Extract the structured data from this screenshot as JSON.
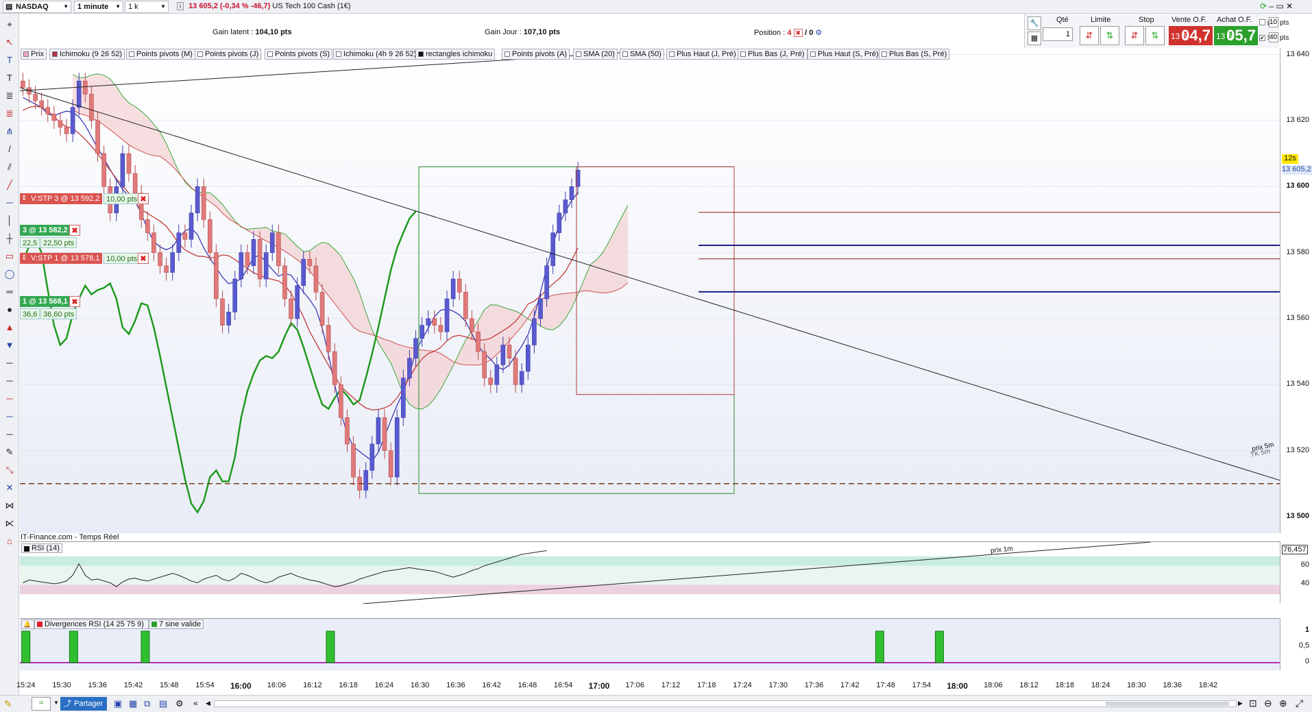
{
  "topbar": {
    "symbol": "NASDAQ",
    "timeframe": "1 minute",
    "units": "1 k unités",
    "last_price": "13 605,2 (-0,34 % -46,7)",
    "instrument": "US Tech 100 Cash (1€)"
  },
  "info": {
    "gain_latent_label": "Gain latent :",
    "gain_latent_value": "104,10 pts",
    "gain_jour_label": "Gain Jour :",
    "gain_jour_value": "107,10 pts",
    "position_label": "Position :",
    "position_value": "4",
    "position_pending": "/ 0"
  },
  "order_panel": {
    "qte_label": "Qté",
    "qte_value": "1",
    "limite_label": "Limite",
    "stop_label": "Stop",
    "vente_label": "Vente O.F.",
    "achat_label": "Achat O.F.",
    "vente_small": "13 6",
    "vente_big": "04,7",
    "achat_small": "13 6",
    "achat_big": "05,7",
    "l_label": "L",
    "l_value": "10",
    "l_unit": "pts",
    "s_label": "S",
    "s_value": "40",
    "s_unit": "pts",
    "colors": {
      "vente": "#d0312d",
      "achat": "#2ca02c"
    }
  },
  "legend": [
    "Prix",
    "Ichimoku (9 26 52)",
    "Points pivots (M)",
    "Points pivots (J)",
    "Points pivots (S)",
    "Ichimoku (4h 9 26 52)",
    "rectangles ichimoku",
    "Points pivots (A)",
    "SMA (20)",
    "SMA (50)",
    "Plus Haut (J, Pré)",
    "Plus Bas (J, Pré)",
    "Plus Haut (S, Pré)",
    "Plus Bas (S, Pré)"
  ],
  "orders": [
    {
      "label": "V:STP 3 @ 13 592,2",
      "pts": "10,00 pts"
    },
    {
      "label": "3 @ 13 582,2",
      "v1": "22,5",
      "v2": "22,50 pts"
    },
    {
      "label": "V:STP 1 @ 13 578,1",
      "pts": "10,00 pts"
    },
    {
      "label": "1 @ 13 568,1",
      "v1": "36,6",
      "v2": "36,60 pts"
    }
  ],
  "annotations": {
    "prix_5m": "prix 5m",
    "tk_5m": "TK 5m",
    "prix_1m": "prix 1m",
    "source": "IT-Finance.com - Temps Réel",
    "countdown": "12s",
    "current_price": "13 605,2"
  },
  "rsi": {
    "label": "RSI (14)",
    "value": "76,457"
  },
  "divergence": {
    "label1": "Divergences RSI (14 25 75 9)",
    "label2": "7 sine valide"
  },
  "bottom": {
    "share_label": "Partager"
  },
  "chart_data": {
    "type": "candlestick",
    "y_ticks": [
      "13 640",
      "13 620",
      "13 600",
      "13 580",
      "13 560",
      "13 540",
      "13 520",
      "13 500"
    ],
    "ylim": [
      13495,
      13642
    ],
    "x_ticks": [
      "15:24",
      "15:30",
      "15:36",
      "15:42",
      "15:48",
      "15:54",
      "16:00",
      "16:06",
      "16:12",
      "16:18",
      "16:24",
      "16:30",
      "16:36",
      "16:42",
      "16:48",
      "16:54",
      "17:00",
      "17:06",
      "17:12",
      "17:18",
      "17:24",
      "17:30",
      "17:36",
      "17:42",
      "17:48",
      "17:54",
      "18:00",
      "18:06",
      "18:12",
      "18:18",
      "18:24",
      "18:30",
      "18:36",
      "18:42"
    ],
    "x_bold": [
      "16:00",
      "17:00",
      "18:00"
    ],
    "xlim_minutes": [
      923,
      1134
    ],
    "candles_close": [
      13630,
      13628,
      13626,
      13624,
      13622,
      13620,
      13618,
      13616,
      13624,
      13632,
      13628,
      13620,
      13610,
      13600,
      13592,
      13600,
      13610,
      13604,
      13598,
      13590,
      13586,
      13580,
      13576,
      13574,
      13580,
      13586,
      13584,
      13592,
      13600,
      13590,
      13580,
      13566,
      13558,
      13562,
      13572,
      13580,
      13576,
      13584,
      13572,
      13580,
      13586,
      13576,
      13566,
      13560,
      13570,
      13578,
      13576,
      13568,
      13558,
      13550,
      13540,
      13530,
      13522,
      13512,
      13508,
      13514,
      13522,
      13530,
      13520,
      13512,
      13530,
      13542,
      13548,
      13554,
      13558,
      13560,
      13558,
      13556,
      13566,
      13572,
      13568,
      13560,
      13556,
      13550,
      13542,
      13540,
      13546,
      13552,
      13548,
      13540,
      13544,
      13552,
      13560,
      13566,
      13576,
      13586,
      13592,
      13596,
      13600,
      13605
    ],
    "y_ticks_rsi": [
      "60",
      "40"
    ],
    "rsi_values": [
      42,
      45,
      44,
      43,
      42,
      41,
      42,
      44,
      50,
      62,
      50,
      45,
      46,
      44,
      42,
      38,
      43,
      46,
      47,
      45,
      44,
      46,
      48,
      50,
      52,
      50,
      47,
      44,
      42,
      46,
      48,
      50,
      46,
      44,
      47,
      52,
      50,
      47,
      44,
      42,
      44,
      48,
      50,
      52,
      49,
      47,
      45,
      44,
      42,
      40,
      38,
      39,
      41,
      43,
      46,
      48,
      50,
      52,
      54,
      55,
      56,
      57,
      58,
      57,
      56,
      55,
      54,
      52,
      50,
      48,
      50,
      52,
      55,
      57,
      60,
      62,
      64,
      66,
      68,
      70,
      72,
      73,
      74,
      75,
      76
    ],
    "div_ticks": [
      "1",
      "0,5",
      "0"
    ],
    "div_bar_minutes": [
      924,
      932,
      944,
      975,
      1067,
      1077
    ]
  }
}
